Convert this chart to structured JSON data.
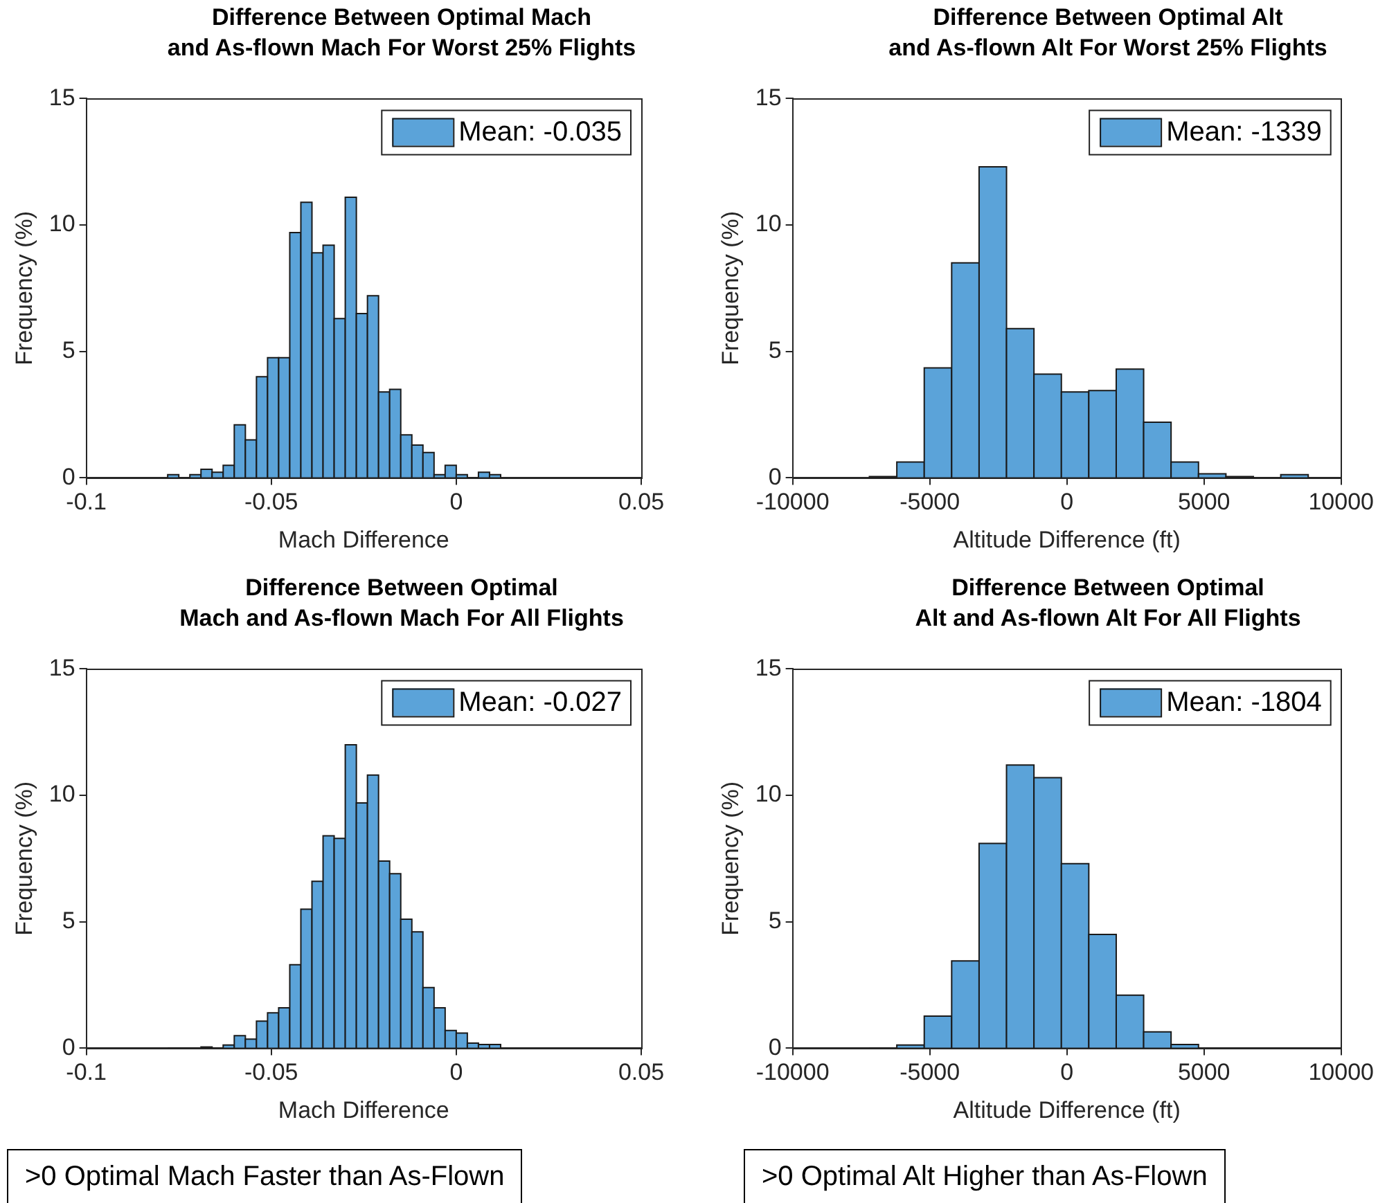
{
  "chart_data": [
    {
      "type": "histogram",
      "title": "Difference Between Optimal Mach and As-flown Mach For Worst 25% Flights",
      "xlabel": "Mach Difference",
      "ylabel": "Frequency (%)",
      "legend": "top right",
      "grid": false,
      "bins": [
        -0.078,
        -0.075,
        -0.072,
        -0.069,
        -0.066,
        -0.063,
        -0.06,
        -0.057,
        -0.054,
        -0.051,
        -0.048,
        -0.045,
        -0.042,
        -0.039,
        -0.036,
        -0.033,
        -0.03,
        -0.027,
        -0.024,
        -0.021,
        -0.018,
        -0.015,
        -0.012,
        -0.009,
        -0.006,
        -0.003,
        0,
        0.003,
        0.006,
        0.009,
        0.012
      ],
      "series": [
        {
          "name": "Mean: -0.035",
          "color": "#5ba3d9",
          "values": [
            0.13,
            0,
            0.13,
            0.34,
            0.22,
            0.5,
            2.1,
            1.5,
            4.0,
            4.75,
            4.75,
            9.7,
            10.9,
            8.9,
            9.2,
            6.3,
            11.1,
            6.5,
            7.2,
            3.4,
            3.5,
            1.7,
            1.3,
            1.0,
            0.13,
            0.5,
            0.13,
            0,
            0.22,
            0.13
          ]
        }
      ],
      "xlim": [
        -0.1,
        0.05
      ],
      "xticks": [
        -0.1,
        -0.05,
        0,
        0.05
      ],
      "ylim": [
        0,
        15
      ],
      "yticks": [
        0,
        5,
        10,
        15
      ]
    },
    {
      "type": "histogram",
      "title": "Difference Between Optimal Alt and As-flown Alt For Worst 25% Flights",
      "xlabel": "Altitude Difference (ft)",
      "ylabel": "Frequency (%)",
      "legend": "top right",
      "grid": false,
      "bins": [
        -7200,
        -6200,
        -5200,
        -4200,
        -3200,
        -2200,
        -1200,
        -200,
        800,
        1800,
        2800,
        3800,
        4800,
        5800,
        6800,
        7800,
        8800
      ],
      "series": [
        {
          "name": "Mean: -1339",
          "color": "#5ba3d9",
          "values": [
            0.05,
            0.63,
            4.35,
            8.5,
            12.3,
            5.9,
            4.1,
            3.4,
            3.45,
            4.3,
            2.2,
            0.63,
            0.16,
            0.05,
            0,
            0.13
          ]
        }
      ],
      "xlim": [
        -10000,
        10000
      ],
      "xticks": [
        -10000,
        -5000,
        0,
        5000,
        10000
      ],
      "ylim": [
        0,
        15
      ],
      "yticks": [
        0,
        5,
        10,
        15
      ]
    },
    {
      "type": "histogram",
      "title": "Difference Between Optimal Mach and As-flown Mach For All Flights",
      "xlabel": "Mach Difference",
      "ylabel": "Frequency (%)",
      "legend": "top right",
      "grid": false,
      "bins": [
        -0.078,
        -0.075,
        -0.072,
        -0.069,
        -0.066,
        -0.063,
        -0.06,
        -0.057,
        -0.054,
        -0.051,
        -0.048,
        -0.045,
        -0.042,
        -0.039,
        -0.036,
        -0.033,
        -0.03,
        -0.027,
        -0.024,
        -0.021,
        -0.018,
        -0.015,
        -0.012,
        -0.009,
        -0.006,
        -0.003,
        0,
        0.003,
        0.006,
        0.009,
        0.012
      ],
      "series": [
        {
          "name": "Mean: -0.027",
          "color": "#5ba3d9",
          "values": [
            0,
            0,
            0,
            0.05,
            0,
            0.13,
            0.5,
            0.36,
            1.07,
            1.4,
            1.6,
            3.3,
            5.5,
            6.6,
            8.4,
            8.3,
            12.0,
            9.7,
            10.8,
            7.4,
            6.9,
            5.1,
            4.6,
            2.4,
            1.6,
            0.7,
            0.6,
            0.2,
            0.15,
            0.15
          ]
        }
      ],
      "xlim": [
        -0.1,
        0.05
      ],
      "xticks": [
        -0.1,
        -0.05,
        0,
        0.05
      ],
      "ylim": [
        0,
        15
      ],
      "yticks": [
        0,
        5,
        10,
        15
      ],
      "annotations": [
        ">0 Optimal Mach Faster than As-Flown"
      ]
    },
    {
      "type": "histogram",
      "title": "Difference Between Optimal Alt and As-flown Alt For All Flights",
      "xlabel": "Altitude Difference (ft)",
      "ylabel": "Frequency (%)",
      "legend": "top right",
      "grid": false,
      "bins": [
        -7200,
        -6200,
        -5200,
        -4200,
        -3200,
        -2200,
        -1200,
        -200,
        800,
        1800,
        2800,
        3800,
        4800
      ],
      "series": [
        {
          "name": "Mean: -1804",
          "color": "#5ba3d9",
          "values": [
            0,
            0.13,
            1.27,
            3.45,
            8.1,
            11.2,
            10.7,
            7.3,
            4.5,
            2.1,
            0.65,
            0.15
          ]
        }
      ],
      "xlim": [
        -10000,
        10000
      ],
      "xticks": [
        -10000,
        -5000,
        0,
        5000,
        10000
      ],
      "ylim": [
        0,
        15
      ],
      "yticks": [
        0,
        5,
        10,
        15
      ],
      "annotations": [
        ">0 Optimal Alt Higher than As-Flown"
      ]
    }
  ]
}
